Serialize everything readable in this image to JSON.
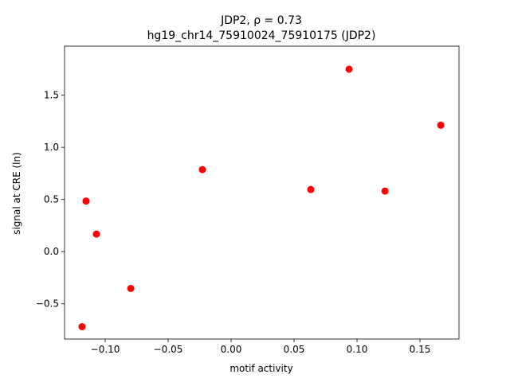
{
  "chart_data": {
    "type": "scatter",
    "title": "JDP2, ρ = 0.73",
    "subtitle": "hg19_chr14_75910024_75910175 (JDP2)",
    "x_label": "motif activity",
    "y_label": "signal at CRE (ln)",
    "color": "#ff0000",
    "x": [
      -0.1152,
      -0.107,
      -0.1184,
      -0.0797,
      -0.0228,
      0.0633,
      0.0937,
      0.1222,
      0.1665
    ],
    "values": [
      0.485,
      0.169,
      -0.72,
      -0.353,
      0.787,
      0.596,
      1.75,
      0.581,
      1.213
    ],
    "xlim": [
      -0.1323,
      0.181
    ],
    "ylim": [
      -0.838,
      1.971
    ],
    "xticks": [
      {
        "value": -0.1,
        "label": "−0.10"
      },
      {
        "value": -0.05,
        "label": "−0.05"
      },
      {
        "value": 0,
        "label": "0.00"
      },
      0.05,
      {
        "value": 0.1,
        "label": "0.10"
      },
      0.15
    ],
    "yticks": [
      {
        "value": -0.5,
        "label": "−0.5"
      },
      {
        "value": 0,
        "label": "0.0"
      },
      0.5,
      {
        "value": 1,
        "label": "1.0"
      },
      1.5
    ]
  }
}
